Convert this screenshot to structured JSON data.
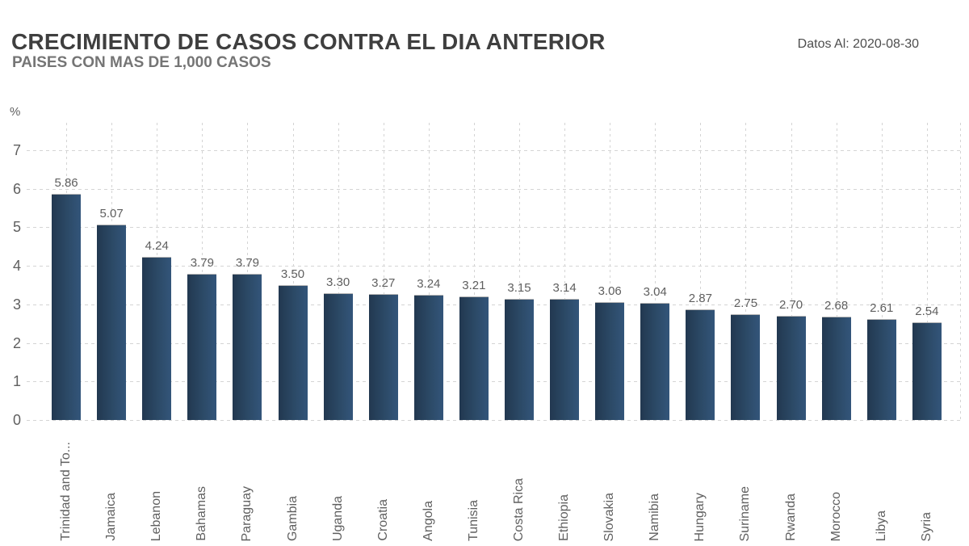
{
  "header": {
    "title": "CRECIMIENTO DE CASOS CONTRA EL DIA ANTERIOR",
    "subtitle": "PAISES CON MAS DE 1,000 CASOS",
    "date_label": "Datos Al: 2020-08-30"
  },
  "chart_data": {
    "type": "bar",
    "title": "CRECIMIENTO DE CASOS CONTRA EL DIA ANTERIOR",
    "subtitle": "PAISES CON MAS DE 1,000 CASOS",
    "note": "Datos Al: 2020-08-30",
    "ylabel": "%",
    "xlabel": "",
    "ylim": [
      0,
      7
    ],
    "yticks": [
      0,
      1,
      2,
      3,
      4,
      5,
      6,
      7
    ],
    "grid": "dashed-horizontal-and-vertical",
    "legend": "none",
    "value_label_decimals": 2,
    "categories": [
      "Trinidad and To...",
      "Jamaica",
      "Lebanon",
      "Bahamas",
      "Paraguay",
      "Gambia",
      "Uganda",
      "Croatia",
      "Angola",
      "Tunisia",
      "Costa Rica",
      "Ethiopia",
      "Slovakia",
      "Namibia",
      "Hungary",
      "Suriname",
      "Rwanda",
      "Morocco",
      "Libya",
      "Syria"
    ],
    "values": [
      5.86,
      5.07,
      4.24,
      3.79,
      3.79,
      3.5,
      3.3,
      3.27,
      3.24,
      3.21,
      3.15,
      3.14,
      3.06,
      3.04,
      2.87,
      2.75,
      2.7,
      2.68,
      2.61,
      2.54
    ],
    "colors": {
      "bar_dark": "#223850",
      "bar_mid": "#2c4a67",
      "bar_light": "#33557a",
      "gridline": "#d4d4d4",
      "axis_text": "#5f5f5f",
      "title_text": "#3f3f3f",
      "subtitle_text": "#757575"
    }
  }
}
